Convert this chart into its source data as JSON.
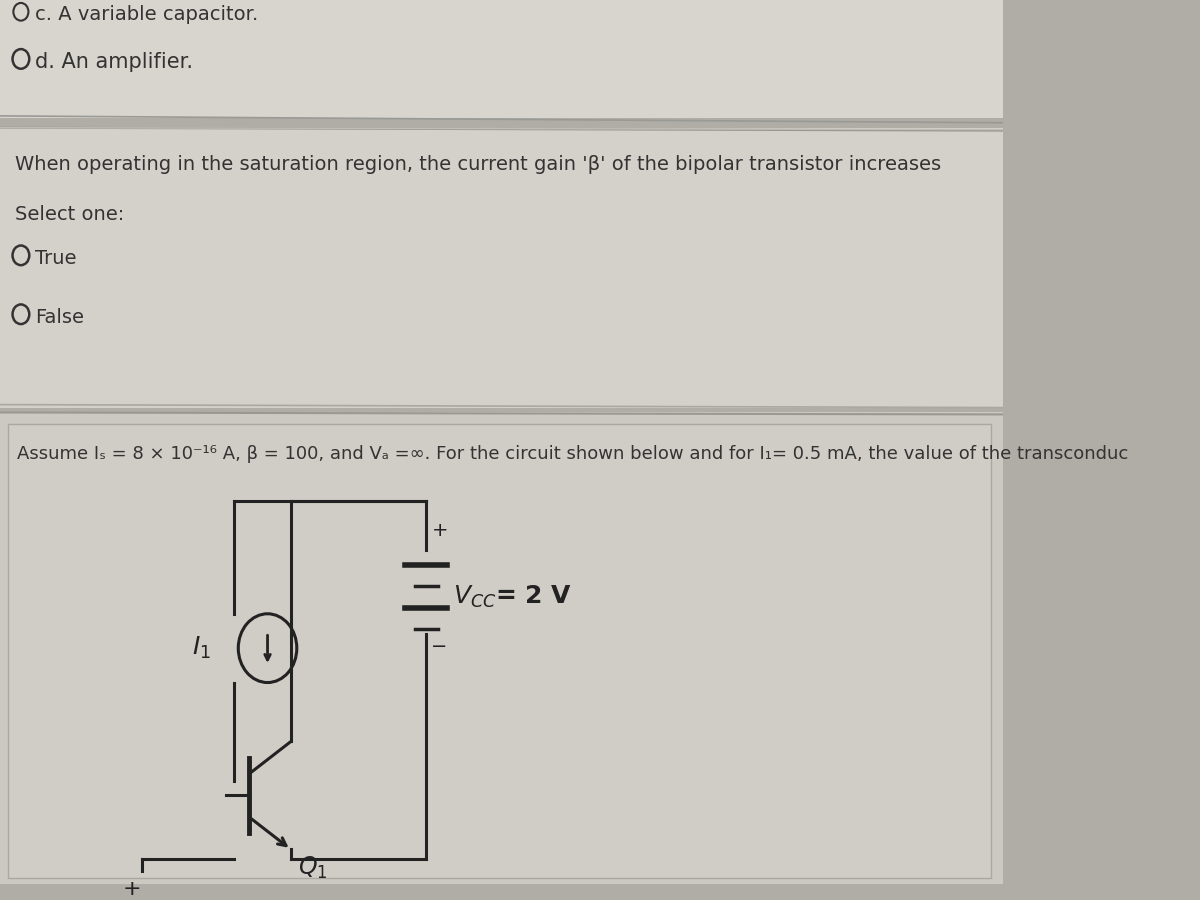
{
  "outer_bg": "#b0ada6",
  "section1_bg": "#d8d5ce",
  "section2_bg": "#d4d1ca",
  "section3_bg": "#ccc9c2",
  "circuit_bg": "#d0cdc6",
  "border_color": "#aaa8a0",
  "text_color": "#555555",
  "dark_text": "#333333",
  "wire_color": "#222222",
  "line1": "c. A variable capacitor.",
  "line2": "d. An amplifier.",
  "q2_text": "When operating in the saturation region, the current gain 'β' of the bipolar transistor increases",
  "select_one": "Select one:",
  "true_label": "True",
  "false_label": "False",
  "q3_text": "Assume Is = 8 × 10⁻¹⁶ A, β = 100, and Vₐ =∞. For the circuit shown below and for I₁= 0.5 mA, the value of the transconduc",
  "vcc_text": "$V_{CC}$= 2 V",
  "q1_text": "$Q_1$",
  "i1_text": "$I_1$",
  "plus_text": "+",
  "minus_text": "−",
  "font_size": 14,
  "font_size_q3": 13,
  "font_size_circuit": 16
}
